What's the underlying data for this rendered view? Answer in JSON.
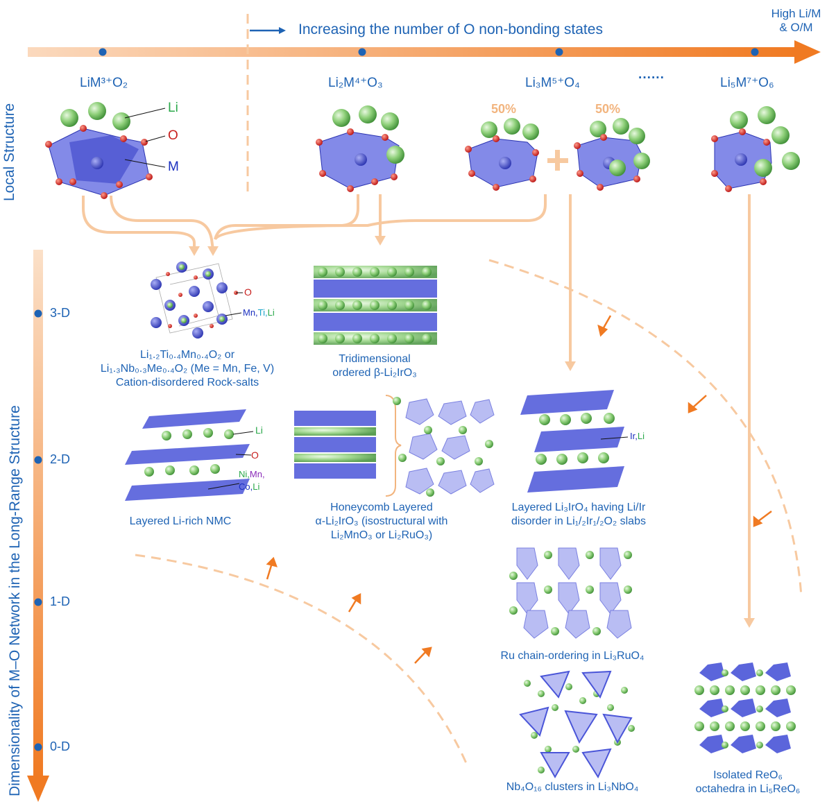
{
  "header": {
    "arrow_label": "Increasing the number of O non-bonding states",
    "high_label": "High Li/M",
    "high_label2": "& O/M"
  },
  "side": {
    "local_structure": "Local Structure",
    "dimensionality": "Dimensionality of M–O Network in the Long-Range Structure",
    "levels": [
      "3-D",
      "2-D",
      "1-D",
      "0-D"
    ]
  },
  "formulas": {
    "f1": "LiM³⁺O₂",
    "f2": "Li₂M⁴⁺O₃",
    "f3": "Li₃M⁵⁺O₄",
    "dots": "······",
    "f4": "Li₅M⁷⁺O₆"
  },
  "legend": {
    "li": "Li",
    "o": "O",
    "m": "M"
  },
  "percent": {
    "left": "50%",
    "right": "50%"
  },
  "rocksalt": {
    "o_label": "O",
    "cations_a": "Mn,",
    "cations_b": "Ti,",
    "cations_c": "Li",
    "caption1": "Li₁.₂Ti₀.₄Mn₀.₄O₂ or",
    "caption2": "Li₁.₃Nb₀.₃Me₀.₄O₂ (Me = Mn, Fe, V)",
    "caption3": "Cation-disordered Rock-salts"
  },
  "beta": {
    "caption1": "Tridimensional",
    "caption2": "ordered β-Li₂IrO₃"
  },
  "nmc": {
    "li": "Li",
    "o": "O",
    "ni": "Ni,",
    "mn": "Mn,",
    "co": "Co,",
    "li2": "Li",
    "caption": "Layered Li-rich NMC"
  },
  "honeycomb": {
    "caption1": "Honeycomb Layered",
    "caption2": "α-Li₂IrO₃ (isostructural with",
    "caption3": "Li₂MnO₃ or Li₂RuO₃)"
  },
  "li3iro4": {
    "ir": "Ir,",
    "li": "Li",
    "caption1": "Layered Li₃IrO₄ having Li/Ir",
    "caption2": "disorder in Li₁/₂Ir₁/₂O₂ slabs"
  },
  "ru": {
    "caption": "Ru chain-ordering in Li₃RuO₄"
  },
  "nb": {
    "caption": "Nb₄O₁₆ clusters in Li₃NbO₄"
  },
  "re": {
    "caption1": "Isolated ReO₆",
    "caption2": "octahedra in Li₅ReO₆"
  },
  "colors": {
    "orange": "#f07a22",
    "light_orange": "#f7c9a0",
    "blue_text": "#1e63b4",
    "li_green": "#8fd07a",
    "octa_blue": "#4a55d8",
    "o_red": "#d42020"
  }
}
